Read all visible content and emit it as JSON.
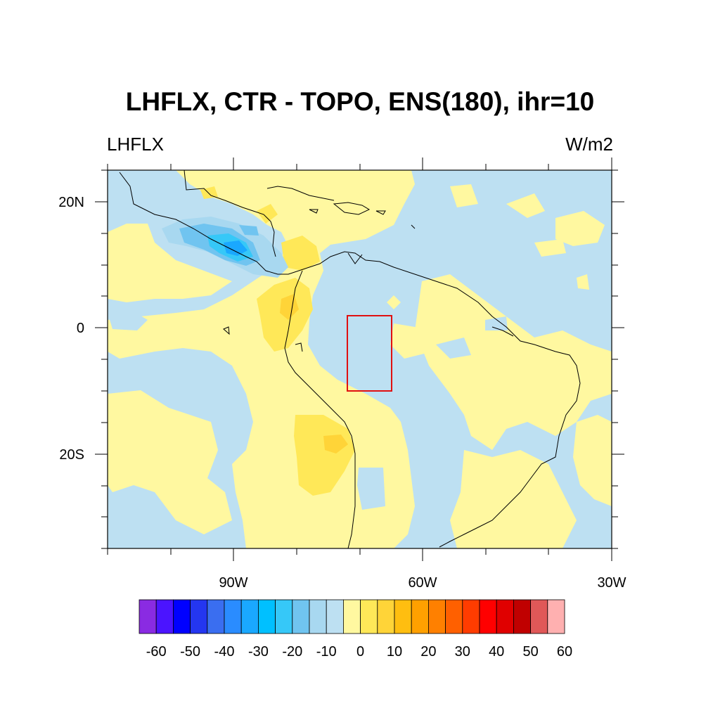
{
  "title": "LHFLX, CTR - TOPO, ENS(180), ihr=10",
  "left_string": "LHFLX",
  "right_string": "W/m2",
  "map": {
    "lon_range": [
      -110,
      -30
    ],
    "lat_range": [
      -35,
      25
    ],
    "lat_tick_labels": [
      "20N",
      "0",
      "20S"
    ],
    "lon_tick_labels": [
      "90W",
      "60W",
      "30W"
    ],
    "region_box": {
      "lon": [
        -72,
        -65
      ],
      "lat": [
        -10,
        2
      ],
      "color": "#e01010"
    },
    "ocean_background_color": "#bde0f2",
    "coastline_color": "#000000"
  },
  "colorbar": {
    "colors": [
      "#8a2be2",
      "#4b14ff",
      "#0000ff",
      "#2436f0",
      "#3a6ef0",
      "#2a8cff",
      "#1aa8ff",
      "#00c0ff",
      "#36c8f8",
      "#70c4f0",
      "#a8d8f0",
      "#bde0f2",
      "#fff8a0",
      "#ffe858",
      "#ffd438",
      "#ffbe10",
      "#ffa000",
      "#ff8000",
      "#ff6000",
      "#ff3c00",
      "#ff0000",
      "#e00000",
      "#c00000",
      "#e05858",
      "#ffb0b0"
    ],
    "labels": [
      "-60",
      "-50",
      "-40",
      "-30",
      "-20",
      "-10",
      "0",
      "10",
      "20",
      "30",
      "40",
      "50",
      "60"
    ]
  }
}
